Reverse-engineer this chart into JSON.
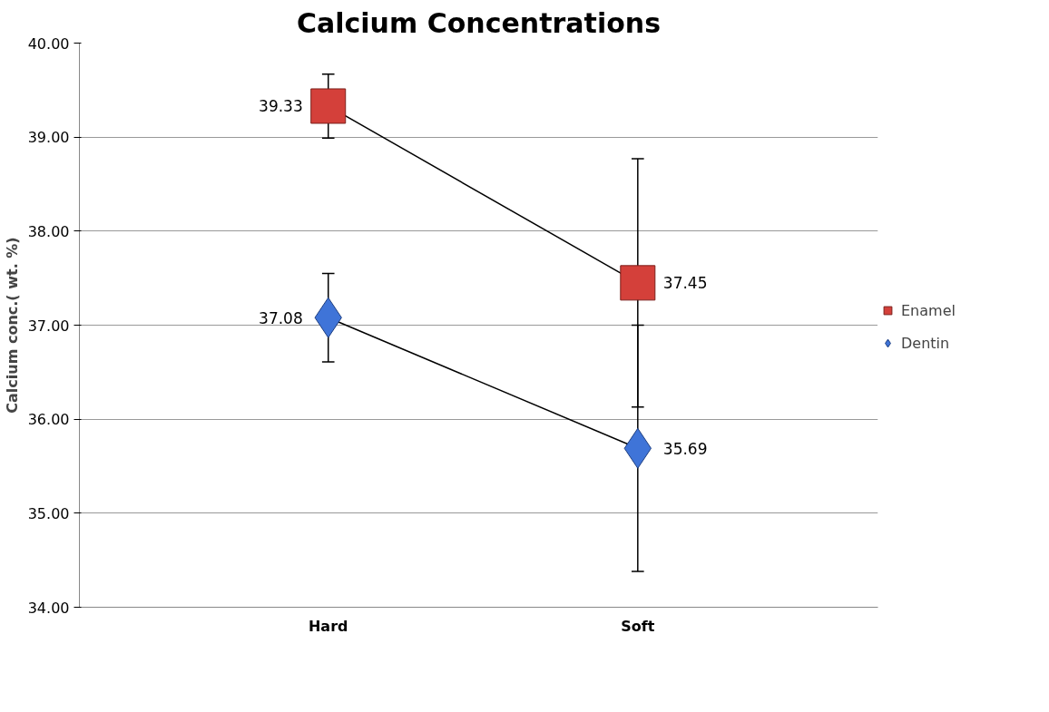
{
  "chart_data": {
    "type": "line",
    "title": "Calcium Concentrations",
    "ylabel": "Calcium conc.( wt. %)",
    "categories": [
      "Hard",
      "Soft"
    ],
    "series": [
      {
        "name": "Enamel",
        "color": "#d4403a",
        "marker": "square",
        "values": [
          39.33,
          37.45
        ],
        "errors": [
          0.34,
          1.32
        ]
      },
      {
        "name": "Dentin",
        "color": "#3f74d8",
        "marker": "diamond",
        "values": [
          37.08,
          35.69
        ],
        "errors": [
          0.47,
          1.31
        ]
      }
    ],
    "ylim": [
      34,
      40
    ],
    "yticks": [
      {
        "value": 34,
        "label": "34.00"
      },
      {
        "value": 35,
        "label": "35.00"
      },
      {
        "value": 36,
        "label": "36.00"
      },
      {
        "value": 37,
        "label": "37.00"
      },
      {
        "value": 38,
        "label": "38.00"
      },
      {
        "value": 39,
        "label": "39.00"
      },
      {
        "value": 40,
        "label": "40.00"
      }
    ],
    "grid": "y",
    "legend": "right",
    "data_labels": true
  }
}
